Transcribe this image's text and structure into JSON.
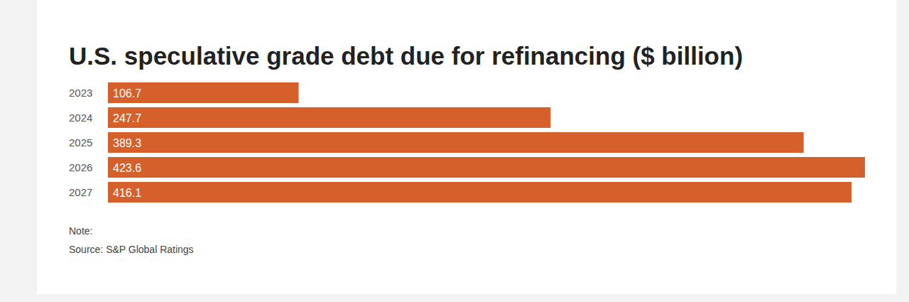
{
  "chart_data": {
    "type": "bar",
    "orientation": "horizontal",
    "title": "U.S. speculative grade debt due for refinancing ($ billion)",
    "categories": [
      "2023",
      "2024",
      "2025",
      "2026",
      "2027"
    ],
    "values": [
      106.7,
      247.7,
      389.3,
      423.6,
      416.1
    ],
    "color": "#d6602b",
    "xlim": [
      0,
      423.6
    ],
    "grid": false,
    "data_labels": true,
    "tick_labels": "y",
    "note": "Note:",
    "source": "Source: S&P Global Ratings"
  }
}
